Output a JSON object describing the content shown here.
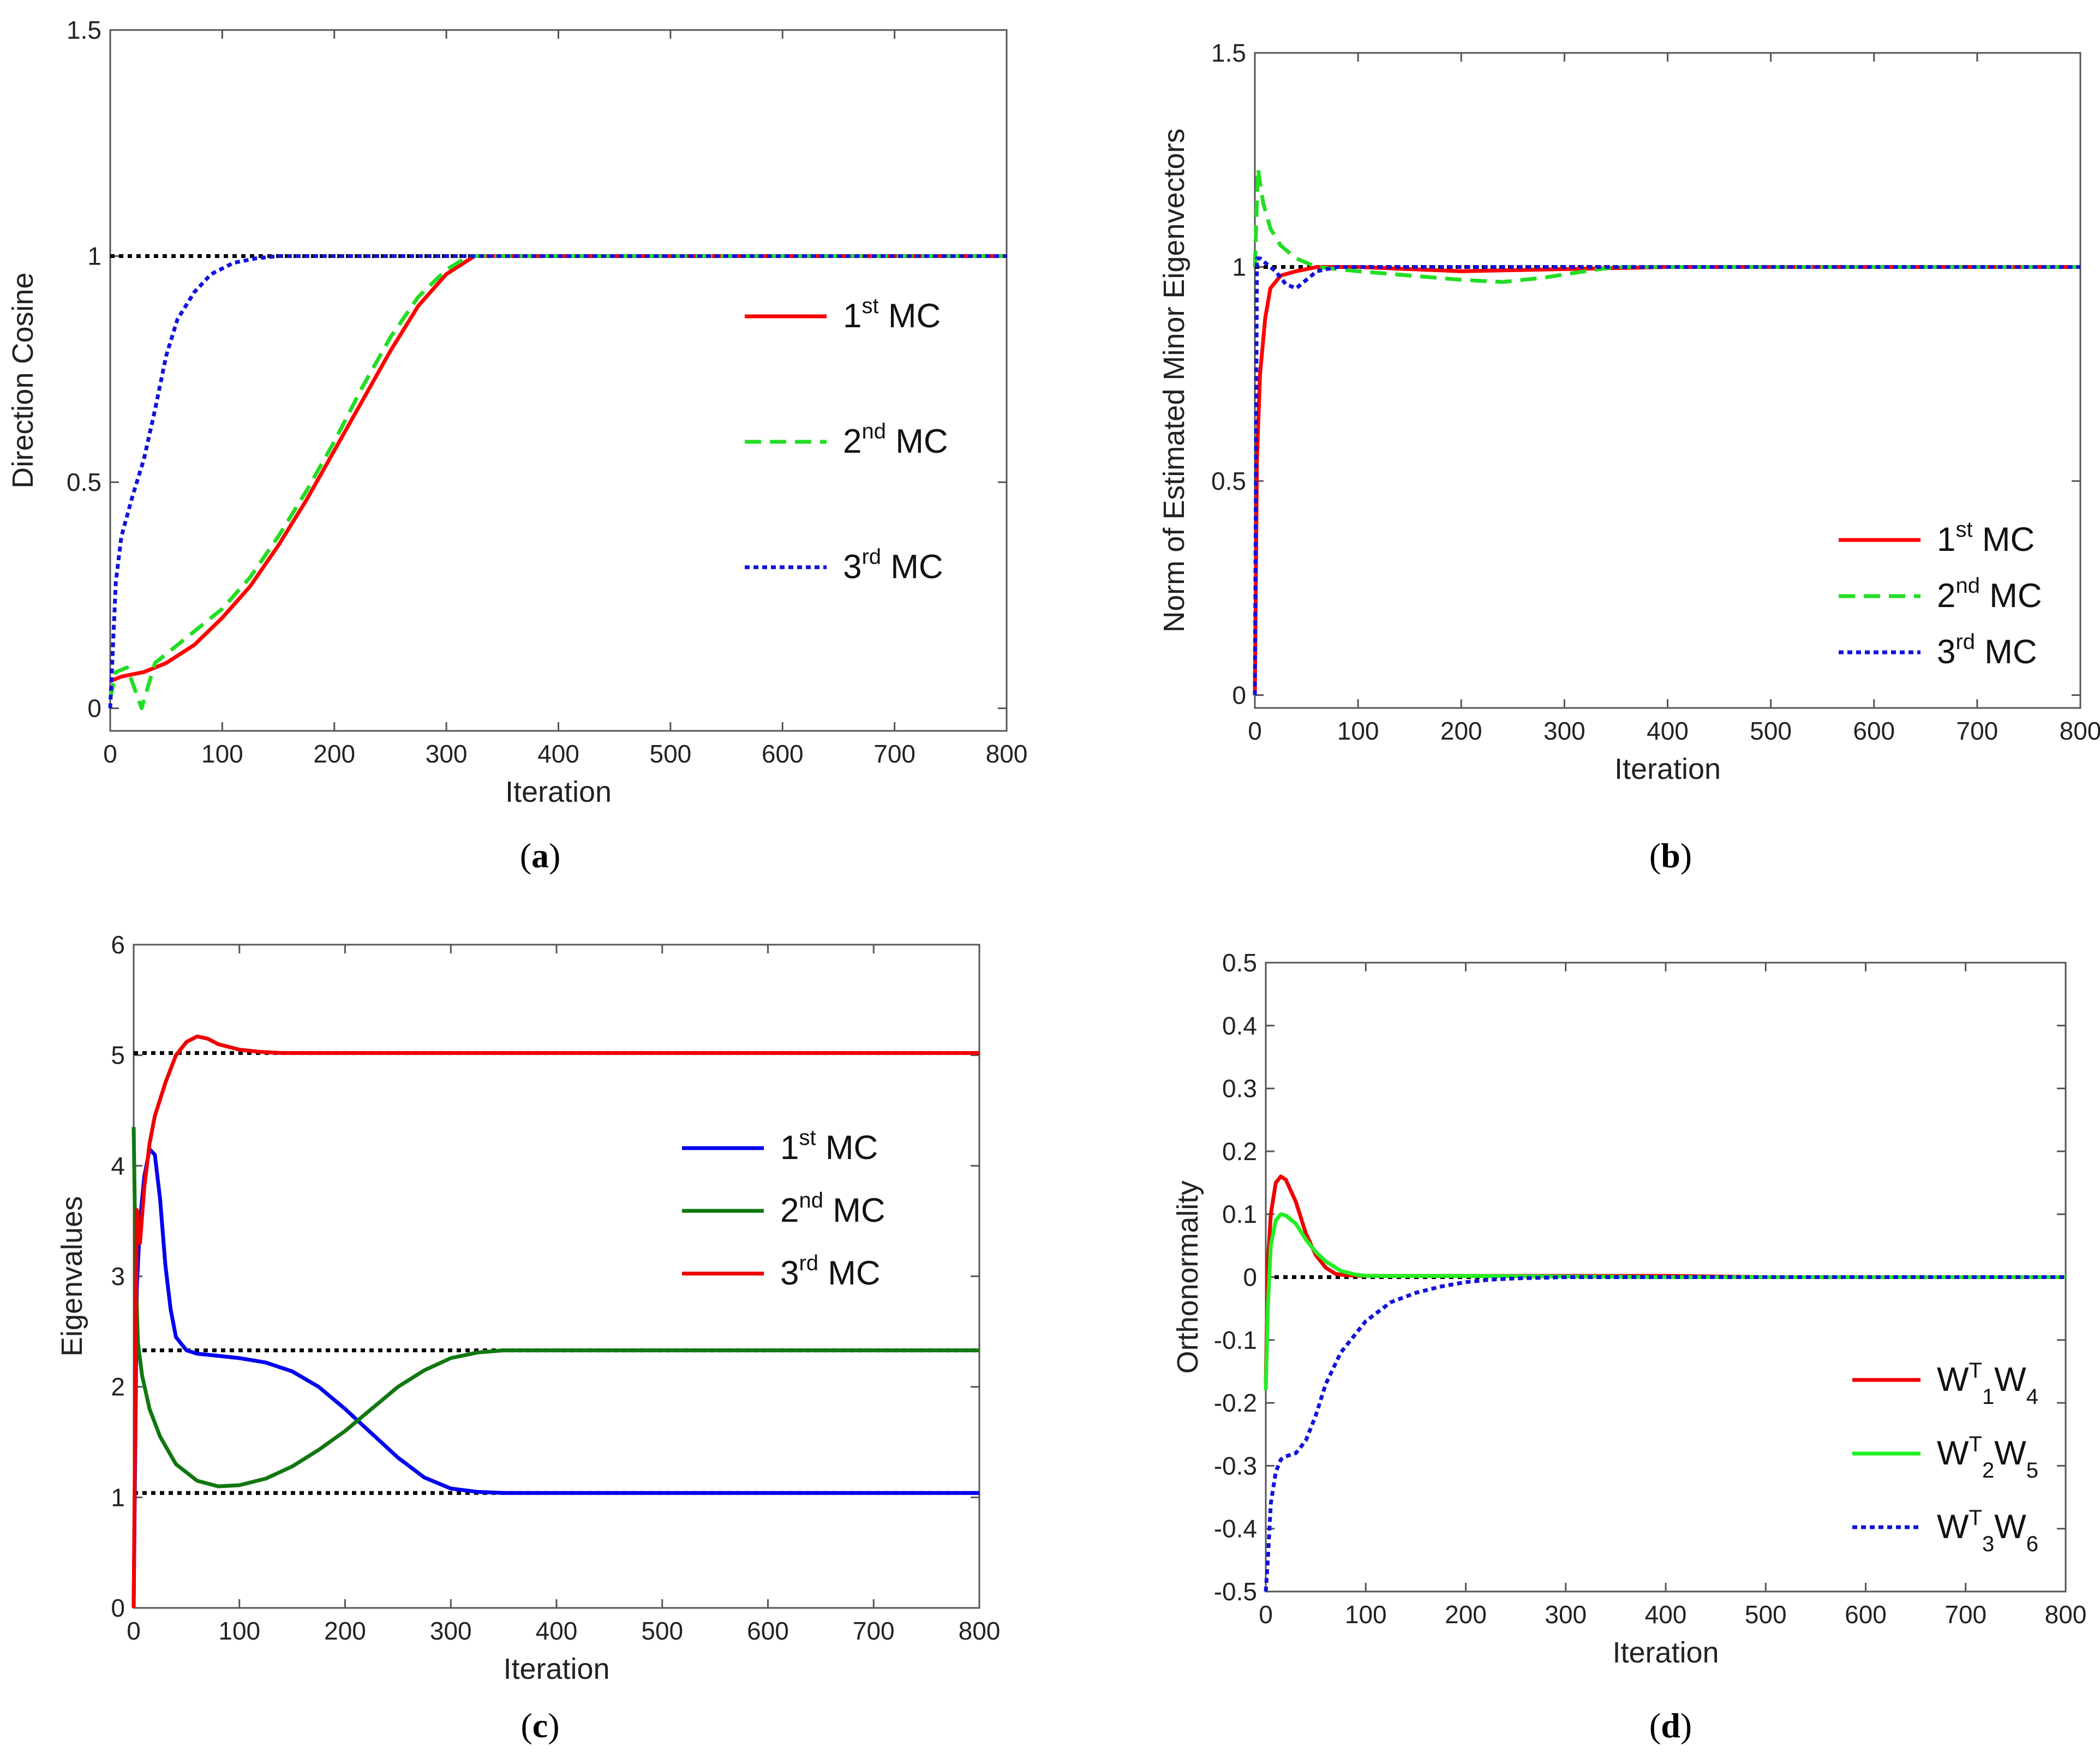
{
  "chart_data": [
    {
      "id": "a",
      "type": "line",
      "caption": "a",
      "xlabel": "Iteration",
      "ylabel": "Direction Cosine",
      "xlim": [
        0,
        800
      ],
      "ylim": [
        -0.05,
        1.5
      ],
      "xticks": [
        0,
        100,
        200,
        300,
        400,
        500,
        600,
        700,
        800
      ],
      "yticks": [
        0,
        0.5,
        1,
        1.5
      ],
      "yticklabels": [
        "0",
        "0.5",
        "1",
        "1.5"
      ],
      "reference_lines": [
        1
      ],
      "legend": {
        "position": "right-middle"
      },
      "series": [
        {
          "name": "1st MC",
          "base": "1",
          "sup": "st",
          "rest": " MC",
          "color": "#ff0000",
          "dash": "solid",
          "x": [
            0,
            10,
            30,
            50,
            75,
            100,
            125,
            150,
            175,
            200,
            225,
            250,
            275,
            300,
            325,
            350,
            400,
            500,
            600,
            700,
            800
          ],
          "y": [
            0.06,
            0.07,
            0.08,
            0.1,
            0.14,
            0.2,
            0.27,
            0.36,
            0.46,
            0.57,
            0.68,
            0.79,
            0.89,
            0.96,
            1.0,
            1.0,
            1.0,
            1.0,
            1.0,
            1.0,
            1.0
          ]
        },
        {
          "name": "2nd MC",
          "base": "2",
          "sup": "nd",
          "rest": " MC",
          "color": "#22dd22",
          "dash": "dashed",
          "x": [
            0,
            5,
            15,
            28,
            40,
            55,
            75,
            100,
            125,
            150,
            175,
            200,
            225,
            250,
            275,
            300,
            320,
            350,
            400,
            500,
            600,
            700,
            800
          ],
          "y": [
            0.02,
            0.08,
            0.09,
            0.0,
            0.1,
            0.13,
            0.17,
            0.22,
            0.29,
            0.38,
            0.48,
            0.59,
            0.71,
            0.82,
            0.91,
            0.97,
            1.0,
            1.0,
            1.0,
            1.0,
            1.0,
            1.0,
            1.0
          ]
        },
        {
          "name": "3rd MC",
          "base": "3",
          "sup": "rd",
          "rest": " MC",
          "color": "#1111dd",
          "dash": "dotted",
          "x": [
            0,
            5,
            10,
            20,
            30,
            40,
            50,
            60,
            75,
            90,
            110,
            130,
            150,
            175,
            200,
            300,
            400,
            500,
            600,
            700,
            800
          ],
          "y": [
            0.0,
            0.28,
            0.38,
            0.47,
            0.55,
            0.66,
            0.78,
            0.86,
            0.92,
            0.96,
            0.985,
            0.995,
            1.0,
            1.0,
            1.0,
            1.0,
            1.0,
            1.0,
            1.0,
            1.0,
            1.0
          ]
        }
      ]
    },
    {
      "id": "b",
      "type": "line",
      "caption": "b",
      "xlabel": "Iteration",
      "ylabel": "Norm of Estimated Minor Eigenvectors",
      "xlim": [
        0,
        800
      ],
      "ylim": [
        -0.03,
        1.5
      ],
      "xticks": [
        0,
        100,
        200,
        300,
        400,
        500,
        600,
        700,
        800
      ],
      "yticks": [
        0,
        0.5,
        1,
        1.5
      ],
      "yticklabels": [
        "0",
        "0.5",
        "1",
        "1.5"
      ],
      "reference_lines": [
        1
      ],
      "legend": {
        "position": "bottom-right"
      },
      "series": [
        {
          "name": "1st MC",
          "base": "1",
          "sup": "st",
          "rest": " MC",
          "color": "#ff0000",
          "dash": "solid",
          "x": [
            0,
            2,
            5,
            10,
            15,
            25,
            40,
            60,
            100,
            200,
            300,
            400,
            500,
            600,
            700,
            800
          ],
          "y": [
            0.0,
            0.55,
            0.75,
            0.88,
            0.95,
            0.98,
            0.99,
            1.0,
            1.0,
            0.99,
            0.995,
            1.0,
            1.0,
            1.0,
            1.0,
            1.0
          ]
        },
        {
          "name": "2nd MC",
          "base": "2",
          "sup": "nd",
          "rest": " MC",
          "color": "#22dd22",
          "dash": "dashed",
          "x": [
            0,
            3,
            8,
            15,
            25,
            40,
            60,
            100,
            150,
            200,
            240,
            280,
            320,
            350,
            400,
            500,
            600,
            700,
            800
          ],
          "y": [
            1.0,
            1.23,
            1.15,
            1.09,
            1.05,
            1.02,
            1.0,
            0.99,
            0.98,
            0.97,
            0.965,
            0.975,
            0.99,
            1.0,
            1.0,
            1.0,
            1.0,
            1.0,
            1.0
          ]
        },
        {
          "name": "3rd MC",
          "base": "3",
          "sup": "rd",
          "rest": " MC",
          "color": "#1111dd",
          "dash": "dotted",
          "x": [
            0,
            2,
            5,
            10,
            20,
            30,
            40,
            50,
            60,
            80,
            100,
            200,
            400,
            600,
            800
          ],
          "y": [
            0.0,
            1.02,
            1.02,
            1.01,
            0.99,
            0.96,
            0.95,
            0.97,
            0.99,
            1.0,
            1.0,
            1.0,
            1.0,
            1.0,
            1.0
          ]
        }
      ]
    },
    {
      "id": "c",
      "type": "line",
      "caption": "c",
      "xlabel": "Iteration",
      "ylabel": "Eigenvalues",
      "xlim": [
        0,
        800
      ],
      "ylim": [
        0,
        6
      ],
      "xticks": [
        0,
        100,
        200,
        300,
        400,
        500,
        600,
        700,
        800
      ],
      "yticks": [
        0,
        1,
        2,
        3,
        4,
        5,
        6
      ],
      "yticklabels": [
        "0",
        "1",
        "2",
        "3",
        "4",
        "5",
        "6"
      ],
      "reference_lines": [
        5.02,
        2.33,
        1.04
      ],
      "legend": {
        "position": "right-middle"
      },
      "series": [
        {
          "name": "1st MC",
          "base": "1",
          "sup": "st",
          "rest": " MC",
          "color": "#0000ee",
          "dash": "solid",
          "x": [
            0,
            3,
            6,
            10,
            15,
            20,
            25,
            30,
            35,
            40,
            50,
            60,
            80,
            100,
            125,
            150,
            175,
            200,
            225,
            250,
            275,
            300,
            325,
            350,
            400,
            500,
            600,
            700,
            800
          ],
          "y": [
            0.0,
            2.9,
            3.5,
            3.9,
            4.15,
            4.1,
            3.7,
            3.1,
            2.7,
            2.45,
            2.33,
            2.3,
            2.28,
            2.26,
            2.22,
            2.14,
            2.0,
            1.8,
            1.58,
            1.36,
            1.18,
            1.08,
            1.05,
            1.04,
            1.04,
            1.04,
            1.04,
            1.04,
            1.04
          ]
        },
        {
          "name": "2nd MC",
          "base": "2",
          "sup": "nd",
          "rest": " MC",
          "color": "#117711",
          "dash": "solid",
          "x": [
            0,
            2,
            4,
            8,
            15,
            25,
            40,
            60,
            80,
            100,
            125,
            150,
            175,
            200,
            225,
            250,
            275,
            300,
            325,
            350,
            380,
            400,
            500,
            600,
            700,
            800
          ],
          "y": [
            4.35,
            3.0,
            2.4,
            2.1,
            1.8,
            1.55,
            1.3,
            1.15,
            1.1,
            1.11,
            1.17,
            1.28,
            1.43,
            1.6,
            1.8,
            2.0,
            2.15,
            2.26,
            2.31,
            2.33,
            2.33,
            2.33,
            2.33,
            2.33,
            2.33,
            2.33
          ]
        },
        {
          "name": "3rd MC",
          "base": "3",
          "sup": "rd",
          "rest": " MC",
          "color": "#ee0000",
          "dash": "solid",
          "x": [
            0,
            3,
            6,
            10,
            15,
            20,
            30,
            40,
            50,
            60,
            70,
            80,
            100,
            120,
            140,
            200,
            300,
            400,
            500,
            600,
            700,
            800
          ],
          "y": [
            0.0,
            3.6,
            3.3,
            3.8,
            4.2,
            4.45,
            4.75,
            5.0,
            5.12,
            5.17,
            5.15,
            5.1,
            5.05,
            5.03,
            5.02,
            5.02,
            5.02,
            5.02,
            5.02,
            5.02,
            5.02,
            5.02
          ]
        }
      ]
    },
    {
      "id": "d",
      "type": "line",
      "caption": "d",
      "xlabel": "Iteration",
      "ylabel": "Orthonormality",
      "xlim": [
        0,
        800
      ],
      "ylim": [
        -0.5,
        0.5
      ],
      "xticks": [
        0,
        100,
        200,
        300,
        400,
        500,
        600,
        700,
        800
      ],
      "yticks": [
        -0.5,
        -0.4,
        -0.3,
        -0.2,
        -0.1,
        0,
        0.1,
        0.2,
        0.3,
        0.4,
        0.5
      ],
      "yticklabels": [
        "-0.5",
        "-0.4",
        "-0.3",
        "-0.2",
        "-0.1",
        "0",
        "0.1",
        "0.2",
        "0.3",
        "0.4",
        "0.5"
      ],
      "reference_lines": [
        0
      ],
      "legend": {
        "position": "bottom-right"
      },
      "series": [
        {
          "name": "W1TW4",
          "w1": "1",
          "w2": "4",
          "sup": "T",
          "color": "#ee0000",
          "dash": "solid",
          "x": [
            0,
            2,
            5,
            10,
            15,
            20,
            30,
            40,
            50,
            60,
            70,
            80,
            100,
            200,
            300,
            400,
            500,
            600,
            700,
            800
          ],
          "y": [
            -0.17,
            0.02,
            0.1,
            0.15,
            0.16,
            0.155,
            0.12,
            0.07,
            0.035,
            0.015,
            0.005,
            0.003,
            0.002,
            0.002,
            0.002,
            0.002,
            0.0,
            0.0,
            0.0,
            0.0
          ]
        },
        {
          "name": "W2TW5",
          "w1": "2",
          "w2": "5",
          "sup": "T",
          "color": "#22ee22",
          "dash": "solid",
          "x": [
            0,
            2,
            5,
            10,
            15,
            20,
            30,
            40,
            50,
            60,
            75,
            90,
            100,
            200,
            300,
            400,
            500,
            600,
            700,
            800
          ],
          "y": [
            -0.18,
            -0.05,
            0.05,
            0.09,
            0.1,
            0.098,
            0.085,
            0.06,
            0.04,
            0.025,
            0.01,
            0.004,
            0.002,
            0.002,
            0.001,
            0.0,
            0.0,
            0.0,
            0.0,
            0.0
          ]
        },
        {
          "name": "W3TW6",
          "w1": "3",
          "w2": "6",
          "sup": "T",
          "color": "#1111dd",
          "dash": "dotted",
          "x": [
            0,
            2,
            5,
            10,
            15,
            20,
            30,
            40,
            50,
            60,
            75,
            100,
            125,
            150,
            175,
            200,
            225,
            250,
            300,
            400,
            800
          ],
          "y": [
            -0.5,
            -0.45,
            -0.36,
            -0.31,
            -0.29,
            -0.285,
            -0.28,
            -0.26,
            -0.22,
            -0.17,
            -0.12,
            -0.07,
            -0.04,
            -0.025,
            -0.015,
            -0.008,
            -0.004,
            -0.002,
            0.0,
            0.0,
            0.0
          ]
        }
      ]
    }
  ]
}
